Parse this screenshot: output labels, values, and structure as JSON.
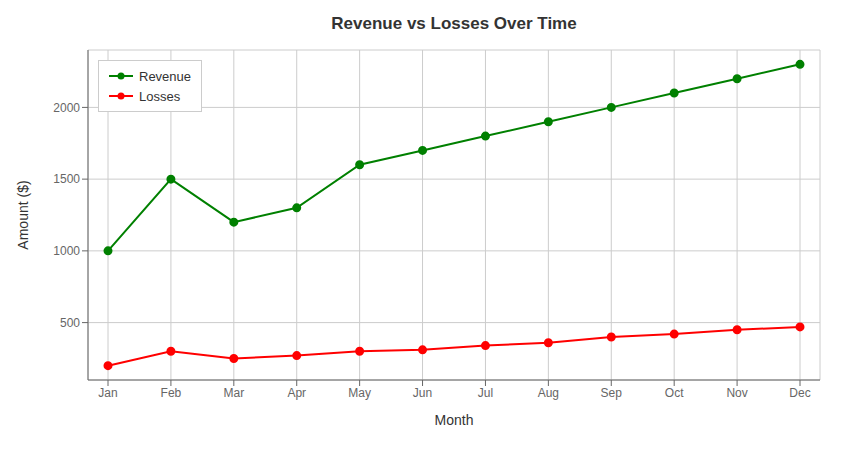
{
  "chart_data": {
    "type": "line",
    "title": "Revenue vs Losses Over Time",
    "xlabel": "Month",
    "ylabel": "Amount ($)",
    "categories": [
      "Jan",
      "Feb",
      "Mar",
      "Apr",
      "May",
      "Jun",
      "Jul",
      "Aug",
      "Sep",
      "Oct",
      "Nov",
      "Dec"
    ],
    "series": [
      {
        "name": "Revenue",
        "color": "#008000",
        "values": [
          1000,
          1500,
          1200,
          1300,
          1600,
          1700,
          1800,
          1900,
          2000,
          2100,
          2200,
          2300
        ]
      },
      {
        "name": "Losses",
        "color": "#ff0000",
        "values": [
          200,
          300,
          250,
          270,
          300,
          310,
          340,
          360,
          400,
          420,
          450,
          470
        ]
      }
    ],
    "ylim": [
      100,
      2400
    ],
    "yticks": [
      500,
      1000,
      1500,
      2000
    ],
    "grid": true,
    "legend": "upper left",
    "marker": "circle"
  }
}
